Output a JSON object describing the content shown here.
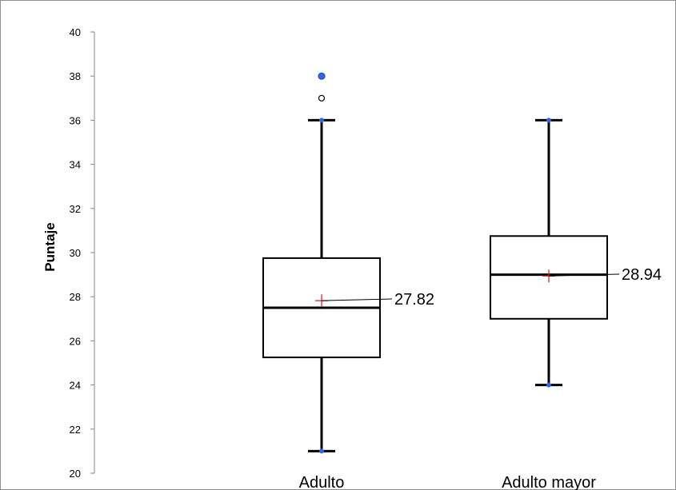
{
  "chart_data": {
    "type": "box",
    "ylabel": "Puntaje",
    "ylim": [
      20,
      40
    ],
    "yticks": [
      20,
      22,
      24,
      26,
      28,
      30,
      32,
      34,
      36,
      38,
      40
    ],
    "categories": [
      "Adulto",
      "Adulto mayor"
    ],
    "boxes": [
      {
        "category": "Adulto",
        "min": 21,
        "q1": 25.25,
        "median": 27.5,
        "q3": 29.75,
        "max": 36,
        "mean": 27.82,
        "mean_label": "27.82",
        "outliers": [
          {
            "value": 37,
            "style": "hollow"
          },
          {
            "value": 38,
            "style": "filled"
          }
        ]
      },
      {
        "category": "Adulto mayor",
        "min": 24,
        "q1": 27,
        "median": 29,
        "q3": 30.75,
        "max": 36,
        "mean": 28.94,
        "mean_label": "28.94",
        "outliers": []
      }
    ],
    "colors": {
      "box": "#000000",
      "mean_marker": "#e0252b",
      "whisker_point": "#3366e6",
      "frame": "#8f8f8f"
    }
  }
}
